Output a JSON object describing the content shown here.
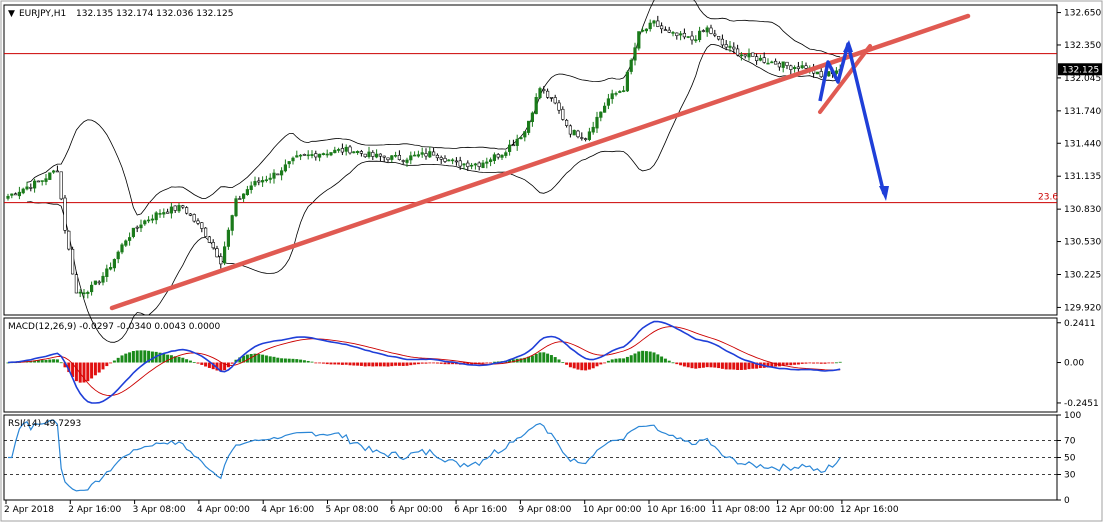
{
  "header": {
    "symbol_label": "EURJPY,H1",
    "ohlc_label": "132.135 132.174 132.036 132.125",
    "macd_label": "MACD(12,26,9) -0.0297 -0.0340 0.0043 0.0000",
    "rsi_label": "RSI(14) 49.7293"
  },
  "colors": {
    "bull": "#1a7a1a",
    "bear": "#000000",
    "trendline": "#e05a52",
    "arrow": "#1f3fd8",
    "level_line": "#cc0000",
    "macd_main": "#1f3fd8",
    "macd_signal": "#cc0000",
    "hist_pos": "#1a8a1a",
    "hist_neg": "#e01010",
    "rsi_line": "#2a86d6"
  },
  "chart_data": [
    {
      "type": "candlestick",
      "name": "price",
      "title": "EURJPY,H1",
      "ylim": [
        129.85,
        132.72
      ],
      "y_ticks": [
        "132.650",
        "132.350",
        "132.045",
        "131.740",
        "131.440",
        "131.135",
        "130.830",
        "130.530",
        "130.225",
        "129.920"
      ],
      "x_ticks": [
        "2 Apr 2018",
        "2 Apr 16:00",
        "3 Apr 08:00",
        "4 Apr 00:00",
        "4 Apr 16:00",
        "5 Apr 08:00",
        "6 Apr 00:00",
        "6 Apr 16:00",
        "9 Apr 08:00",
        "10 Apr 00:00",
        "10 Apr 16:00",
        "11 Apr 08:00",
        "12 Apr 00:00",
        "12 Apr 16:00"
      ],
      "current_price": "132.125",
      "horizontal_levels": [
        {
          "value": 132.27,
          "label": ""
        },
        {
          "value": 130.89,
          "label": "23.6"
        }
      ],
      "anchors": [
        [
          0,
          130.95
        ],
        [
          4,
          131.02
        ],
        [
          9,
          131.1
        ],
        [
          13,
          131.2
        ],
        [
          15,
          130.65
        ],
        [
          18,
          130.05
        ],
        [
          22,
          130.1
        ],
        [
          26,
          130.25
        ],
        [
          31,
          130.55
        ],
        [
          35,
          130.7
        ],
        [
          40,
          130.8
        ],
        [
          46,
          130.85
        ],
        [
          52,
          130.6
        ],
        [
          56,
          130.35
        ],
        [
          60,
          130.9
        ],
        [
          64,
          131.05
        ],
        [
          70,
          131.15
        ],
        [
          76,
          131.3
        ],
        [
          82,
          131.35
        ],
        [
          90,
          131.38
        ],
        [
          96,
          131.32
        ],
        [
          104,
          131.3
        ],
        [
          112,
          131.35
        ],
        [
          118,
          131.25
        ],
        [
          124,
          131.25
        ],
        [
          130,
          131.35
        ],
        [
          136,
          131.55
        ],
        [
          140,
          131.95
        ],
        [
          144,
          131.8
        ],
        [
          148,
          131.55
        ],
        [
          152,
          131.5
        ],
        [
          158,
          131.85
        ],
        [
          162,
          131.95
        ],
        [
          166,
          132.45
        ],
        [
          170,
          132.55
        ],
        [
          174,
          132.45
        ],
        [
          180,
          132.4
        ],
        [
          184,
          132.5
        ],
        [
          188,
          132.35
        ],
        [
          194,
          132.25
        ],
        [
          200,
          132.2
        ],
        [
          206,
          132.15
        ],
        [
          210,
          132.15
        ],
        [
          214,
          132.05
        ],
        [
          218,
          132.12
        ]
      ]
    },
    {
      "type": "line",
      "name": "MACD(12,26,9)",
      "ylim": [
        -0.3,
        0.27
      ],
      "y_ticks": [
        "0.2411",
        "0.00",
        "-0.2451"
      ],
      "main_values": "-0.0297",
      "signal_values": "-0.0340"
    },
    {
      "type": "line",
      "name": "RSI(14)",
      "ylim": [
        0,
        100
      ],
      "y_ticks": [
        "100",
        "70",
        "50",
        "30",
        "0"
      ],
      "value": "49.7293",
      "levels": [
        70,
        50,
        30
      ]
    }
  ]
}
